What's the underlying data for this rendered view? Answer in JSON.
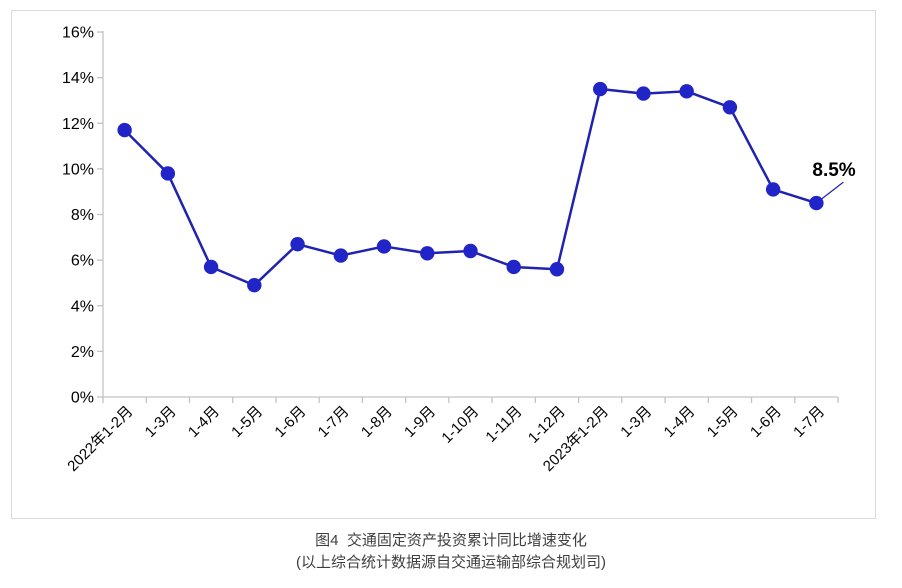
{
  "chart_data": {
    "type": "line",
    "title": "图4  交通固定资产投资累计同比增速变化",
    "subtitle": "(以上综合统计数据源自交通运输部综合规划司)",
    "categories": [
      "2022年1-2月",
      "1-3月",
      "1-4月",
      "1-5月",
      "1-6月",
      "1-7月",
      "1-8月",
      "1-9月",
      "1-10月",
      "1-11月",
      "1-12月",
      "2023年1-2月",
      "1-3月",
      "1-4月",
      "1-5月",
      "1-6月",
      "1-7月"
    ],
    "values": [
      11.7,
      9.8,
      5.7,
      4.9,
      6.7,
      6.2,
      6.6,
      6.3,
      6.4,
      5.7,
      5.6,
      13.5,
      13.3,
      13.4,
      12.7,
      9.1,
      8.5
    ],
    "xlabel": "",
    "ylabel": "",
    "ylim": [
      0,
      16
    ],
    "ytick_step": 2,
    "ytick_labels": [
      "0%",
      "2%",
      "4%",
      "6%",
      "8%",
      "10%",
      "12%",
      "14%",
      "16%"
    ],
    "grid": false,
    "legend_position": "none",
    "annotation": {
      "text": "8.5%",
      "target_index": 16
    },
    "colors": {
      "line": "#1f23b0",
      "marker": "#2125c8",
      "axis": "#c3c3c3",
      "tick_label": "#000000",
      "annotation_text": "#000000",
      "caption": "#3f3f3f",
      "border": "#d9d9d9"
    }
  }
}
